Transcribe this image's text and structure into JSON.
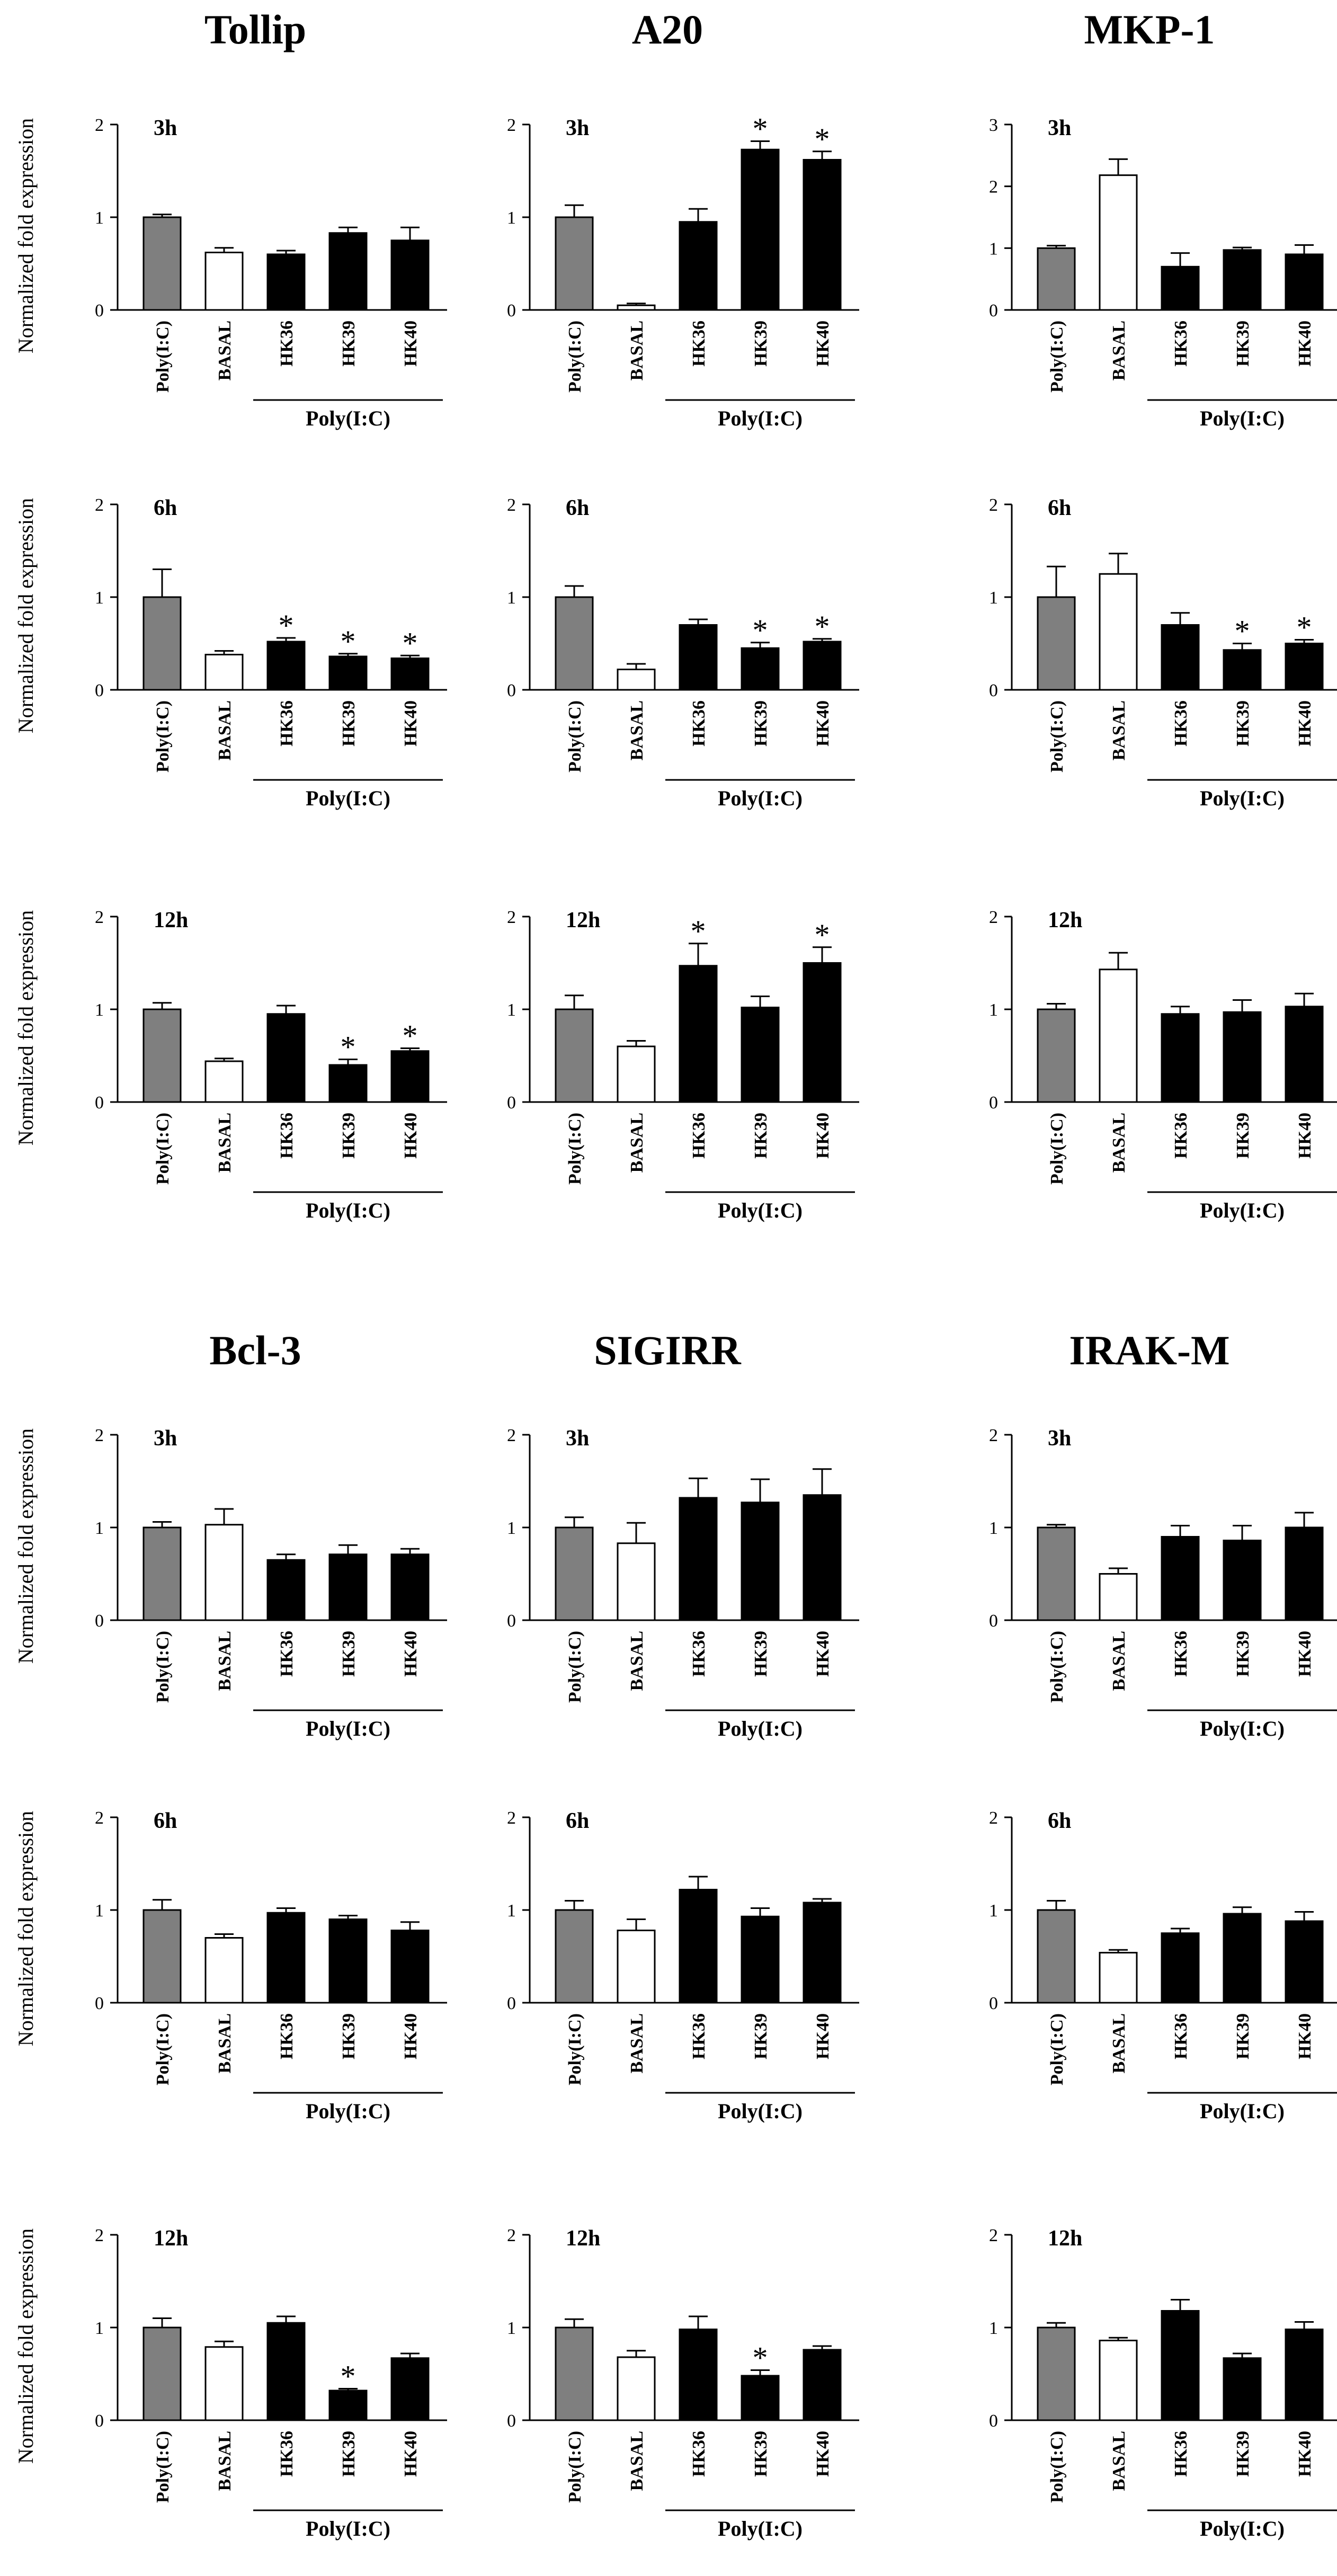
{
  "figure": {
    "group_label": "Poly(I:C)",
    "categories": [
      "Poly(I:C)",
      "BASAL",
      "HK36",
      "HK39",
      "HK40"
    ],
    "ylabel": "Normalized fold expression",
    "colors": {
      "control": "#7f7f7f",
      "basal": "#ffffff",
      "treated": "#000000"
    }
  },
  "chart_data": [
    {
      "type": "bar",
      "gene": "Tollip",
      "time": "3h",
      "ylim": [
        0,
        2
      ],
      "yticks": [
        0,
        1,
        2
      ],
      "values": [
        1.0,
        0.62,
        0.6,
        0.83,
        0.75
      ],
      "errors": [
        0.03,
        0.05,
        0.04,
        0.06,
        0.14
      ],
      "significant": [
        false,
        false,
        false,
        false,
        false
      ]
    },
    {
      "type": "bar",
      "gene": "A20",
      "time": "3h",
      "ylim": [
        0,
        2
      ],
      "yticks": [
        0,
        1,
        2
      ],
      "values": [
        1.0,
        0.05,
        0.95,
        1.73,
        1.62
      ],
      "errors": [
        0.13,
        0.02,
        0.14,
        0.09,
        0.09
      ],
      "significant": [
        false,
        false,
        false,
        true,
        true
      ]
    },
    {
      "type": "bar",
      "gene": "MKP-1",
      "time": "3h",
      "ylim": [
        0,
        3
      ],
      "yticks": [
        0,
        1,
        2,
        3
      ],
      "values": [
        1.0,
        2.18,
        0.7,
        0.97,
        0.9
      ],
      "errors": [
        0.04,
        0.26,
        0.22,
        0.04,
        0.15
      ],
      "significant": [
        false,
        false,
        false,
        false,
        false
      ]
    },
    {
      "type": "bar",
      "gene": "Tollip",
      "time": "6h",
      "ylim": [
        0,
        2
      ],
      "yticks": [
        0,
        1,
        2
      ],
      "values": [
        1.0,
        0.38,
        0.52,
        0.36,
        0.34
      ],
      "errors": [
        0.3,
        0.04,
        0.04,
        0.03,
        0.03
      ],
      "significant": [
        false,
        false,
        true,
        true,
        true
      ]
    },
    {
      "type": "bar",
      "gene": "A20",
      "time": "6h",
      "ylim": [
        0,
        2
      ],
      "yticks": [
        0,
        1,
        2
      ],
      "values": [
        1.0,
        0.22,
        0.7,
        0.45,
        0.52
      ],
      "errors": [
        0.12,
        0.06,
        0.06,
        0.06,
        0.03
      ],
      "significant": [
        false,
        false,
        false,
        true,
        true
      ]
    },
    {
      "type": "bar",
      "gene": "MKP-1",
      "time": "6h",
      "ylim": [
        0,
        2
      ],
      "yticks": [
        0,
        1,
        2
      ],
      "values": [
        1.0,
        1.25,
        0.7,
        0.43,
        0.5
      ],
      "errors": [
        0.33,
        0.22,
        0.13,
        0.07,
        0.04
      ],
      "significant": [
        false,
        false,
        false,
        true,
        true
      ]
    },
    {
      "type": "bar",
      "gene": "Tollip",
      "time": "12h",
      "ylim": [
        0,
        2
      ],
      "yticks": [
        0,
        1,
        2
      ],
      "values": [
        1.0,
        0.44,
        0.95,
        0.4,
        0.55
      ],
      "errors": [
        0.07,
        0.03,
        0.09,
        0.06,
        0.03
      ],
      "significant": [
        false,
        false,
        false,
        true,
        true
      ]
    },
    {
      "type": "bar",
      "gene": "A20",
      "time": "12h",
      "ylim": [
        0,
        2
      ],
      "yticks": [
        0,
        1,
        2
      ],
      "values": [
        1.0,
        0.6,
        1.47,
        1.02,
        1.5
      ],
      "errors": [
        0.15,
        0.06,
        0.24,
        0.12,
        0.17
      ],
      "significant": [
        false,
        false,
        true,
        false,
        true
      ]
    },
    {
      "type": "bar",
      "gene": "MKP-1",
      "time": "12h",
      "ylim": [
        0,
        2
      ],
      "yticks": [
        0,
        1,
        2
      ],
      "values": [
        1.0,
        1.43,
        0.95,
        0.97,
        1.03
      ],
      "errors": [
        0.06,
        0.18,
        0.08,
        0.13,
        0.14
      ],
      "significant": [
        false,
        false,
        false,
        false,
        false
      ]
    },
    {
      "type": "bar",
      "gene": "Bcl-3",
      "time": "3h",
      "ylim": [
        0,
        2
      ],
      "yticks": [
        0,
        1,
        2
      ],
      "values": [
        1.0,
        1.03,
        0.65,
        0.71,
        0.71
      ],
      "errors": [
        0.06,
        0.17,
        0.06,
        0.1,
        0.06
      ],
      "significant": [
        false,
        false,
        false,
        false,
        false
      ]
    },
    {
      "type": "bar",
      "gene": "SIGIRR",
      "time": "3h",
      "ylim": [
        0,
        2
      ],
      "yticks": [
        0,
        1,
        2
      ],
      "values": [
        1.0,
        0.83,
        1.32,
        1.27,
        1.35
      ],
      "errors": [
        0.11,
        0.22,
        0.21,
        0.25,
        0.28
      ],
      "significant": [
        false,
        false,
        false,
        false,
        false
      ]
    },
    {
      "type": "bar",
      "gene": "IRAK-M",
      "time": "3h",
      "ylim": [
        0,
        2
      ],
      "yticks": [
        0,
        1,
        2
      ],
      "values": [
        1.0,
        0.5,
        0.9,
        0.86,
        1.0
      ],
      "errors": [
        0.03,
        0.06,
        0.12,
        0.16,
        0.16
      ],
      "significant": [
        false,
        false,
        false,
        false,
        false
      ]
    },
    {
      "type": "bar",
      "gene": "Bcl-3",
      "time": "6h",
      "ylim": [
        0,
        2
      ],
      "yticks": [
        0,
        1,
        2
      ],
      "values": [
        1.0,
        0.7,
        0.97,
        0.9,
        0.78
      ],
      "errors": [
        0.11,
        0.04,
        0.05,
        0.04,
        0.09
      ],
      "significant": [
        false,
        false,
        false,
        false,
        false
      ]
    },
    {
      "type": "bar",
      "gene": "SIGIRR",
      "time": "6h",
      "ylim": [
        0,
        2
      ],
      "yticks": [
        0,
        1,
        2
      ],
      "values": [
        1.0,
        0.78,
        1.22,
        0.93,
        1.08
      ],
      "errors": [
        0.1,
        0.12,
        0.14,
        0.09,
        0.04
      ],
      "significant": [
        false,
        false,
        false,
        false,
        false
      ]
    },
    {
      "type": "bar",
      "gene": "IRAK-M",
      "time": "6h",
      "ylim": [
        0,
        2
      ],
      "yticks": [
        0,
        1,
        2
      ],
      "values": [
        1.0,
        0.54,
        0.75,
        0.96,
        0.88
      ],
      "errors": [
        0.1,
        0.03,
        0.05,
        0.07,
        0.1
      ],
      "significant": [
        false,
        false,
        false,
        false,
        false
      ]
    },
    {
      "type": "bar",
      "gene": "Bcl-3",
      "time": "12h",
      "ylim": [
        0,
        2
      ],
      "yticks": [
        0,
        1,
        2
      ],
      "values": [
        1.0,
        0.79,
        1.05,
        0.32,
        0.67
      ],
      "errors": [
        0.1,
        0.06,
        0.07,
        0.02,
        0.05
      ],
      "significant": [
        false,
        false,
        false,
        true,
        false
      ]
    },
    {
      "type": "bar",
      "gene": "SIGIRR",
      "time": "12h",
      "ylim": [
        0,
        2
      ],
      "yticks": [
        0,
        1,
        2
      ],
      "values": [
        1.0,
        0.68,
        0.98,
        0.48,
        0.76
      ],
      "errors": [
        0.09,
        0.07,
        0.14,
        0.06,
        0.04
      ],
      "significant": [
        false,
        false,
        false,
        true,
        false
      ]
    },
    {
      "type": "bar",
      "gene": "IRAK-M",
      "time": "12h",
      "ylim": [
        0,
        2
      ],
      "yticks": [
        0,
        1,
        2
      ],
      "values": [
        1.0,
        0.86,
        1.18,
        0.67,
        0.98
      ],
      "errors": [
        0.05,
        0.03,
        0.12,
        0.05,
        0.08
      ],
      "significant": [
        false,
        false,
        false,
        false,
        false
      ]
    }
  ]
}
